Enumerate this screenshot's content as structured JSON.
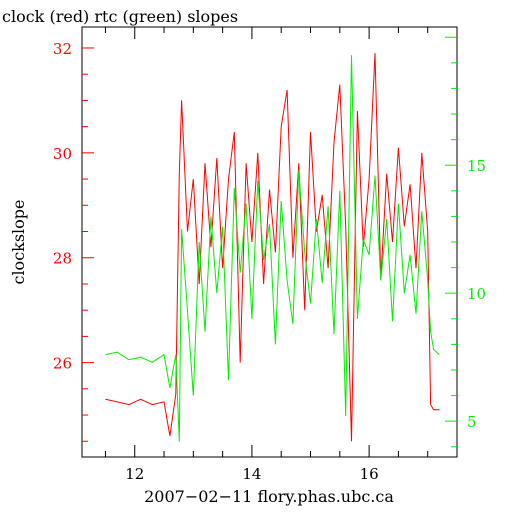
{
  "chart_data": {
    "type": "line",
    "title": "clock (red) rtc (green) slopes",
    "xlabel": "2007−02−11 flory.phas.ubc.ca",
    "ylabel": "clockslope",
    "xlim": [
      11.1,
      17.5
    ],
    "ylim_left": [
      24.2,
      32.4
    ],
    "ylim_right": [
      3.6,
      20.4
    ],
    "x_ticks": [
      12,
      14,
      16
    ],
    "x_tick_labels": [
      "12",
      "14",
      "16"
    ],
    "y_left_ticks": [
      26,
      28,
      30,
      32
    ],
    "y_left_tick_labels": [
      "26",
      "28",
      "30",
      "32"
    ],
    "y_right_ticks": [
      5,
      10,
      15
    ],
    "y_right_tick_labels": [
      "5",
      "10",
      "15"
    ],
    "grid": false,
    "legend": "none",
    "series": [
      {
        "axis": "left",
        "color": "#ff0000",
        "x": [
          11.5,
          11.7,
          11.9,
          12.1,
          12.3,
          12.5,
          12.6,
          12.7,
          12.76,
          12.8,
          12.9,
          13.0,
          13.1,
          13.2,
          13.3,
          13.4,
          13.5,
          13.6,
          13.7,
          13.8,
          13.9,
          14.0,
          14.1,
          14.2,
          14.3,
          14.4,
          14.5,
          14.6,
          14.7,
          14.8,
          14.9,
          15.0,
          15.1,
          15.2,
          15.3,
          15.4,
          15.5,
          15.6,
          15.7,
          15.8,
          15.9,
          16.0,
          16.1,
          16.2,
          16.3,
          16.4,
          16.5,
          16.6,
          16.7,
          16.8,
          16.9,
          17.0,
          17.05,
          17.1,
          17.2
        ],
        "y": [
          25.3,
          25.25,
          25.2,
          25.3,
          25.2,
          25.25,
          24.6,
          25.4,
          29.6,
          31.0,
          28.5,
          29.5,
          27.5,
          29.8,
          28.2,
          29.9,
          27.8,
          29.5,
          30.4,
          26.0,
          29.8,
          28.3,
          30.0,
          27.5,
          29.3,
          28.1,
          30.5,
          31.2,
          28.0,
          29.8,
          27.0,
          30.4,
          28.5,
          29.2,
          27.8,
          30.2,
          31.3,
          28.6,
          24.5,
          30.8,
          28.2,
          29.5,
          31.9,
          27.6,
          29.6,
          28.3,
          30.1,
          28.6,
          29.4,
          27.8,
          30.0,
          28.5,
          25.2,
          25.1,
          25.1
        ]
      },
      {
        "axis": "right",
        "color": "#00ee00",
        "x": [
          11.5,
          11.7,
          11.9,
          12.1,
          12.3,
          12.5,
          12.6,
          12.7,
          12.76,
          12.8,
          12.9,
          13.0,
          13.1,
          13.2,
          13.3,
          13.4,
          13.5,
          13.6,
          13.7,
          13.8,
          13.9,
          14.0,
          14.1,
          14.2,
          14.3,
          14.4,
          14.5,
          14.6,
          14.7,
          14.8,
          14.9,
          15.0,
          15.1,
          15.2,
          15.3,
          15.4,
          15.5,
          15.6,
          15.7,
          15.8,
          15.9,
          16.0,
          16.1,
          16.2,
          16.3,
          16.4,
          16.5,
          16.6,
          16.7,
          16.8,
          16.9,
          17.0,
          17.05,
          17.1,
          17.2
        ],
        "y": [
          7.6,
          7.7,
          7.4,
          7.5,
          7.3,
          7.6,
          6.3,
          7.6,
          4.2,
          12.5,
          9.3,
          6.0,
          12.0,
          8.5,
          13.0,
          10.0,
          12.6,
          6.6,
          14.1,
          10.8,
          13.5,
          9.0,
          14.4,
          11.3,
          12.7,
          8.0,
          13.6,
          10.5,
          8.8,
          14.8,
          11.6,
          9.6,
          12.9,
          10.4,
          13.4,
          8.4,
          14.0,
          5.2,
          19.3,
          9.0,
          12.1,
          11.5,
          14.6,
          10.5,
          12.9,
          8.9,
          13.5,
          10.0,
          11.5,
          9.2,
          13.2,
          10.5,
          8.5,
          7.8,
          7.6
        ]
      }
    ]
  }
}
